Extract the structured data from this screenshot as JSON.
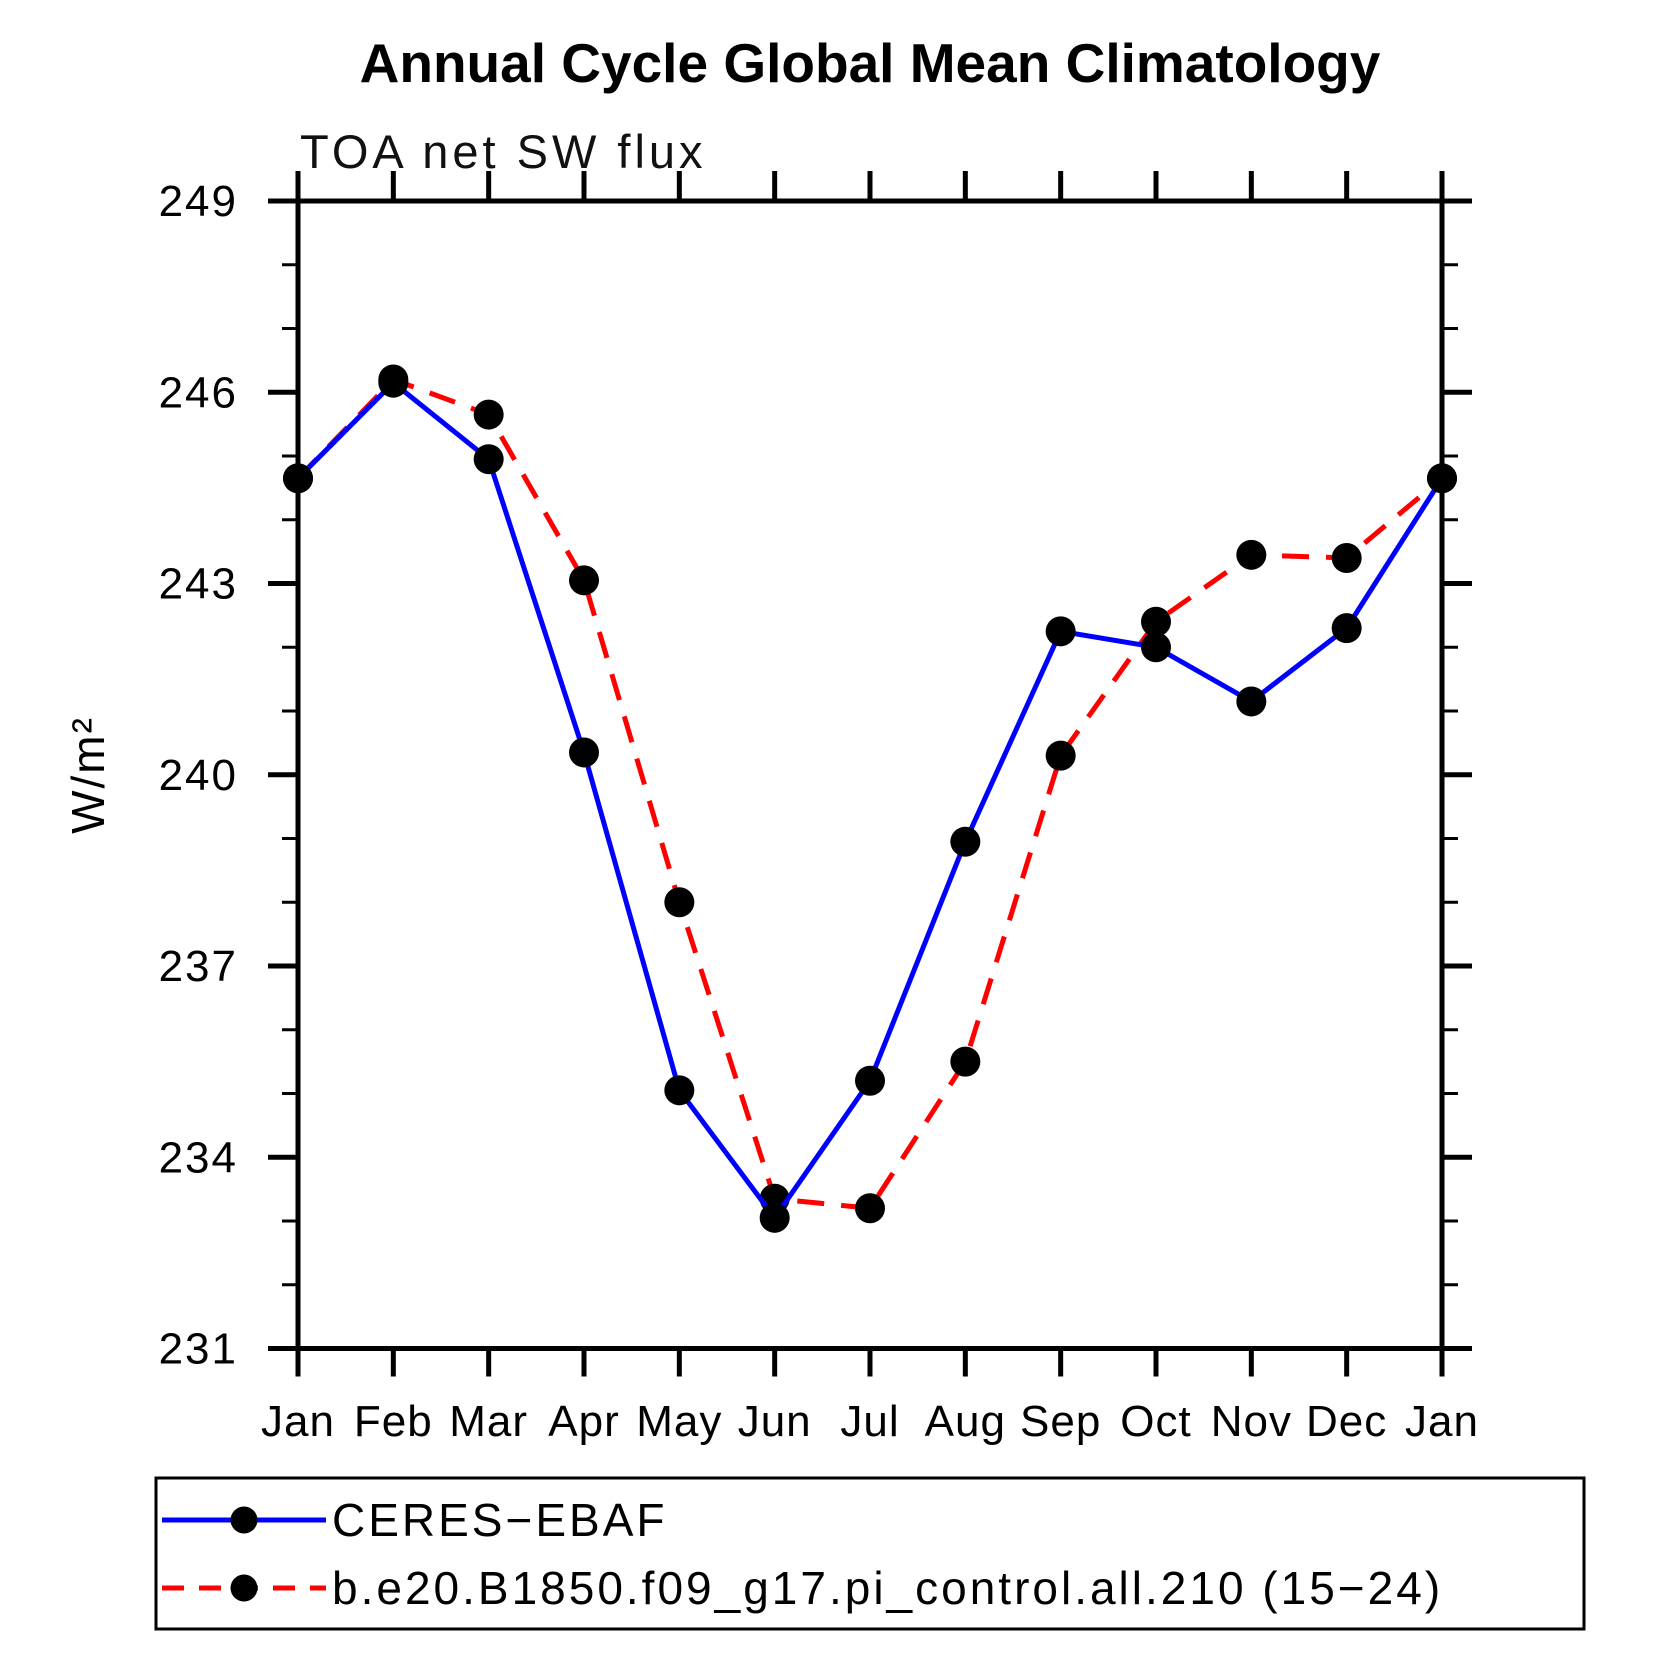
{
  "chart_data": {
    "type": "line",
    "title": "Annual Cycle Global Mean Climatology",
    "subtitle": "TOA net SW flux",
    "ylabel": "W/m²",
    "xlabel": "",
    "categories": [
      "Jan",
      "Feb",
      "Mar",
      "Apr",
      "May",
      "Jun",
      "Jul",
      "Aug",
      "Sep",
      "Oct",
      "Nov",
      "Dec",
      "Jan"
    ],
    "y_axis": {
      "min": 231,
      "max": 249,
      "major_step": 3,
      "minor_step": 1,
      "major_ticks": [
        231,
        234,
        237,
        240,
        243,
        246,
        249
      ]
    },
    "grid": "off",
    "legend_position": "bottom",
    "marker_color": "#000000",
    "series": [
      {
        "name": "CERES−EBAF",
        "color": "#0000ff",
        "line_style": "solid",
        "marker": "circle",
        "values": [
          244.65,
          246.15,
          244.95,
          240.35,
          235.05,
          233.05,
          235.2,
          238.95,
          242.25,
          242.0,
          241.15,
          242.3,
          244.65
        ]
      },
      {
        "name": "b.e20.B1850.f09_g17.pi_control.all.210 (15−24)",
        "color": "#ff0000",
        "line_style": "dashed",
        "marker": "circle",
        "values": [
          244.65,
          246.2,
          245.65,
          243.05,
          238.0,
          233.35,
          233.2,
          235.5,
          240.3,
          242.4,
          243.45,
          243.4,
          244.65
        ]
      }
    ]
  }
}
